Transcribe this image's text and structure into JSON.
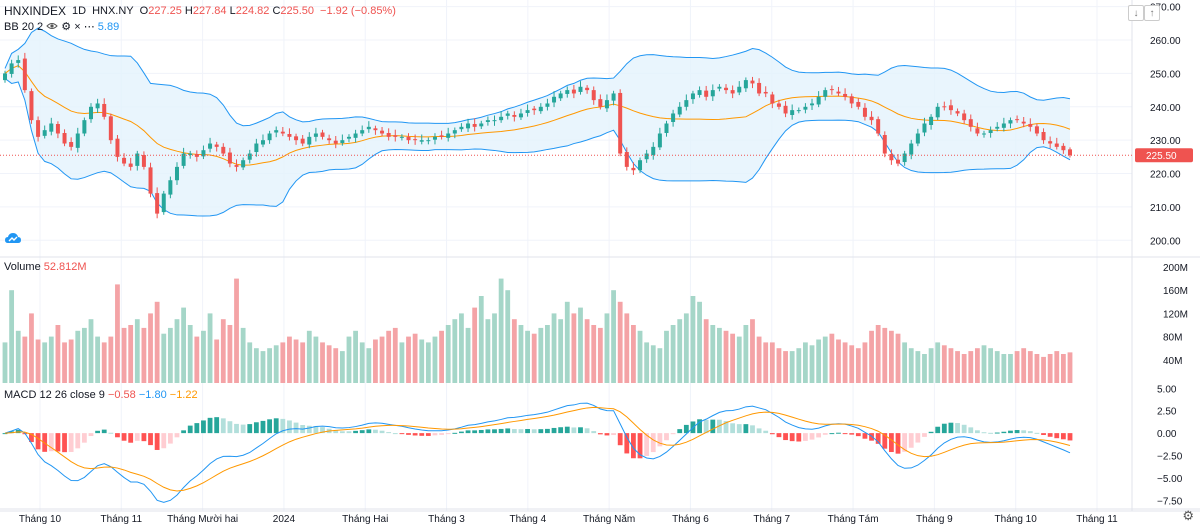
{
  "header": {
    "symbol": "HNXINDEX",
    "interval": "1D",
    "exchange": "HNX.NY",
    "open_label": "O",
    "open": "227.25",
    "high_label": "H",
    "high": "227.84",
    "low_label": "L",
    "low": "224.82",
    "close_label": "C",
    "close": "225.50",
    "change": "−1.92 (−0.85%)"
  },
  "bb_indicator": {
    "name": "BB",
    "params": "20 2",
    "value_fragment": "5.89"
  },
  "volume_indicator": {
    "name": "Volume",
    "value": "52.812M"
  },
  "macd_indicator": {
    "name": "MACD",
    "params": "12 26 close 9",
    "hist": "−0.58",
    "macd": "−1.80",
    "signal": "−1.22"
  },
  "price_axis": {
    "ticks": [
      "270.00",
      "260.00",
      "250.00",
      "240.00",
      "230.00",
      "220.00",
      "210.00",
      "200.00"
    ],
    "last_price": "225.50"
  },
  "volume_axis": {
    "ticks": [
      "200M",
      "160M",
      "120M",
      "80M",
      "40M"
    ]
  },
  "macd_axis": {
    "ticks": [
      "5.00",
      "2.50",
      "0.00",
      "−2.50",
      "−5.00",
      "−7.50"
    ]
  },
  "time_axis": {
    "labels": [
      "Tháng 10",
      "Tháng 11",
      "Tháng Mười hai",
      "2024",
      "Tháng Hai",
      "Tháng 3",
      "Tháng 4",
      "Tháng Năm",
      "Tháng 6",
      "Tháng 7",
      "Tháng Tám",
      "Tháng 9",
      "Tháng 10",
      "Tháng 11"
    ]
  },
  "colors": {
    "up": "#26a69a",
    "down": "#ef5350",
    "vol_up": "#a5d6c8",
    "vol_down": "#f4a3a6",
    "bb_line": "#2196f3",
    "bb_fill": "#e3f2fd",
    "basis": "#ff9800",
    "macd": "#2196f3",
    "signal": "#ff9800",
    "last_price_bg": "#ef5350"
  },
  "chart_data": {
    "type": "candlestick",
    "symbol": "HNXINDEX",
    "interval": "1D",
    "ylim_price": [
      195,
      272
    ],
    "ylim_volume_millions": [
      0,
      200
    ],
    "ylim_macd": [
      -8.7,
      5.6
    ],
    "closes": [
      250,
      253,
      254,
      245,
      236,
      231,
      233,
      235,
      232,
      229,
      228,
      232,
      236,
      240,
      241,
      237,
      230,
      225,
      223,
      222,
      226,
      222,
      214,
      208,
      214,
      218,
      222,
      226,
      226,
      225,
      227,
      229,
      228,
      226,
      223,
      222,
      224,
      226,
      229,
      230,
      232,
      233,
      232,
      231,
      230,
      229,
      231,
      232,
      231,
      230,
      229,
      230,
      231,
      232,
      233,
      234,
      233,
      232,
      231,
      231,
      231,
      230,
      230,
      230,
      230,
      231,
      231,
      232,
      233,
      234,
      235,
      234,
      235,
      236,
      236,
      237,
      238,
      237,
      238,
      239,
      239,
      240,
      241,
      243,
      244,
      245,
      244,
      246,
      245,
      242,
      240,
      242,
      244,
      226,
      222,
      221,
      224,
      226,
      228,
      232,
      235,
      238,
      240,
      242,
      244,
      245,
      243,
      245,
      246,
      245,
      244,
      246,
      248,
      247,
      244,
      244,
      241,
      240,
      238,
      239,
      239,
      240,
      241,
      243,
      245,
      245,
      244,
      243,
      241,
      240,
      237,
      236,
      232,
      226,
      224,
      223,
      226,
      229,
      232,
      235,
      237,
      240,
      240,
      239,
      238,
      236,
      234,
      232,
      232,
      233,
      234,
      235,
      236,
      236,
      235,
      234,
      232,
      230,
      229,
      228,
      227,
      225.5
    ],
    "volumes_millions": [
      70,
      160,
      90,
      80,
      120,
      75,
      70,
      80,
      100,
      70,
      75,
      90,
      95,
      110,
      80,
      70,
      80,
      170,
      95,
      100,
      110,
      95,
      120,
      140,
      85,
      95,
      110,
      130,
      100,
      80,
      90,
      120,
      75,
      110,
      100,
      180,
      95,
      70,
      60,
      55,
      60,
      65,
      70,
      80,
      75,
      70,
      90,
      80,
      70,
      65,
      60,
      55,
      80,
      90,
      70,
      60,
      75,
      80,
      90,
      95,
      70,
      80,
      85,
      75,
      70,
      80,
      90,
      100,
      110,
      120,
      95,
      130,
      150,
      110,
      120,
      180,
      160,
      110,
      100,
      90,
      85,
      95,
      100,
      120,
      110,
      140,
      120,
      130,
      110,
      100,
      95,
      120,
      160,
      140,
      120,
      100,
      90,
      70,
      65,
      60,
      90,
      100,
      110,
      120,
      150,
      140,
      110,
      100,
      95,
      90,
      85,
      80,
      100,
      110,
      80,
      70,
      70,
      60,
      55,
      55,
      60,
      70,
      65,
      75,
      80,
      85,
      75,
      70,
      65,
      60,
      70,
      90,
      100,
      95,
      90,
      85,
      70,
      60,
      55,
      50,
      60,
      70,
      65,
      60,
      55,
      50,
      55,
      60,
      65,
      60,
      55,
      50,
      50,
      55,
      60,
      55,
      50,
      45,
      50,
      55,
      50,
      52.812
    ],
    "bb": {
      "period": 20,
      "stddev": 2
    },
    "macd_params": {
      "fast": 12,
      "slow": 26,
      "signal": 9
    },
    "last": {
      "open": 227.25,
      "high": 227.84,
      "low": 224.82,
      "close": 225.5,
      "change": -1.92,
      "change_pct": -0.85
    }
  }
}
